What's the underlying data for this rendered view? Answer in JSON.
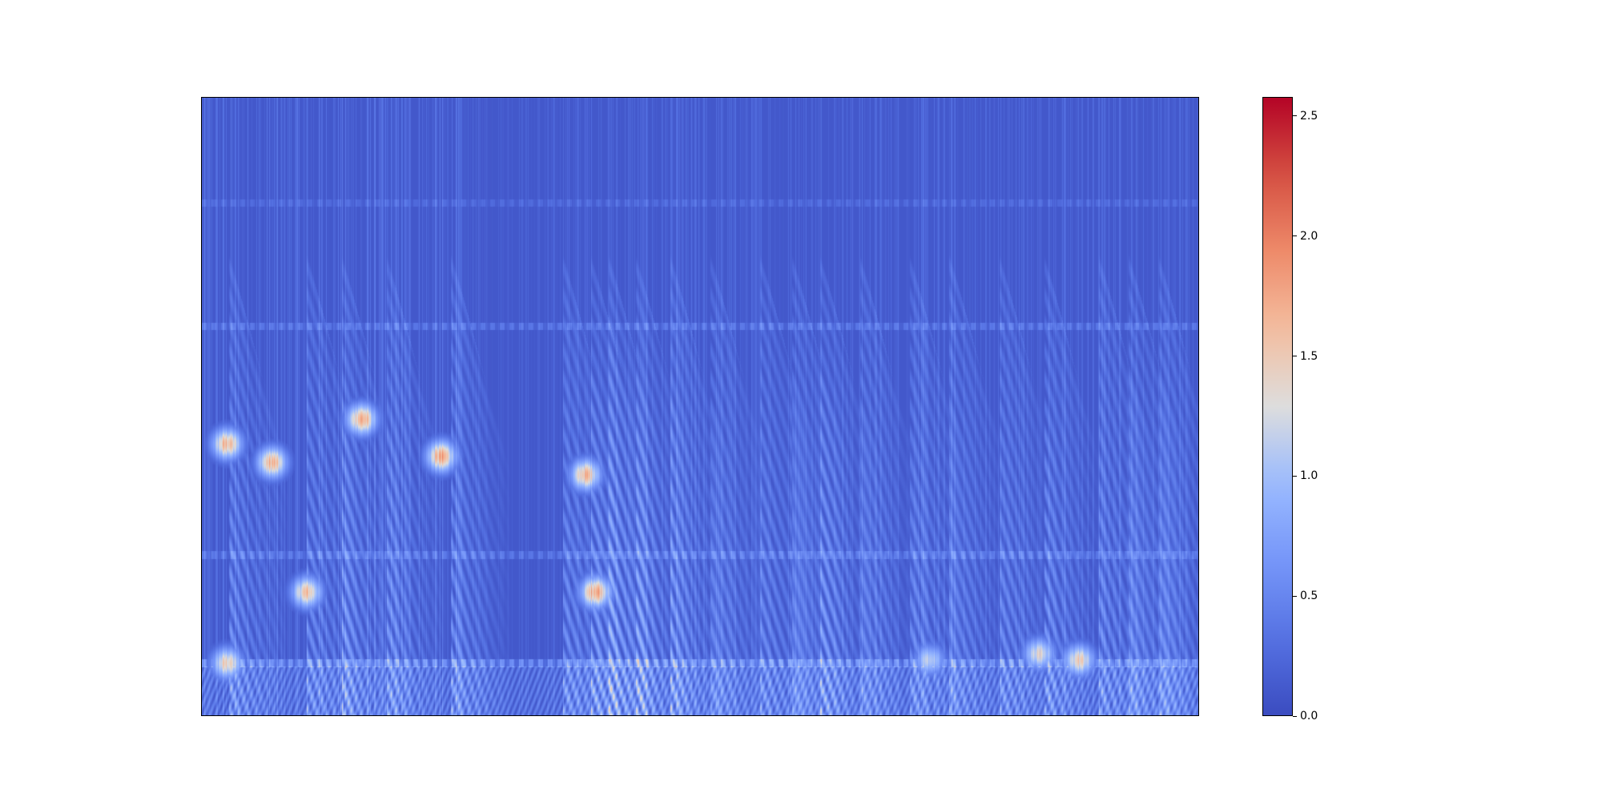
{
  "chart_data": {
    "type": "heatmap",
    "title": "",
    "xlabel": "",
    "ylabel": "",
    "x_ticks": [],
    "y_ticks": [],
    "colormap": "coolwarm",
    "colorbar": {
      "min": 0.0,
      "max": 2.58,
      "ticks": [
        0.0,
        0.5,
        1.0,
        1.5,
        2.0,
        2.5
      ],
      "tick_labels": [
        "0.0",
        "0.5",
        "1.0",
        "1.5",
        "2.0",
        "2.5"
      ]
    },
    "colors": {
      "low": "#3b4cc0",
      "mid": "#dddddd",
      "high": "#b40426"
    },
    "features": {
      "time_range": [
        0,
        1
      ],
      "freq_range": [
        0,
        1
      ],
      "background_value": 0.1,
      "onset_times": [
        0.027,
        0.105,
        0.14,
        0.185,
        0.25,
        0.362,
        0.39,
        0.408,
        0.435,
        0.47,
        0.51,
        0.56,
        0.592,
        0.62,
        0.66,
        0.71,
        0.75,
        0.8,
        0.845,
        0.9,
        0.93,
        0.96
      ],
      "horizontal_bands": [
        {
          "freq": 0.085,
          "strength": 0.45
        },
        {
          "freq": 0.26,
          "strength": 0.25
        },
        {
          "freq": 0.63,
          "strength": 0.25
        },
        {
          "freq": 0.83,
          "strength": 0.15
        }
      ],
      "hotspots": [
        {
          "t": 0.025,
          "f": 0.085,
          "value": 1.7
        },
        {
          "t": 0.025,
          "f": 0.44,
          "value": 1.9
        },
        {
          "t": 0.07,
          "f": 0.41,
          "value": 1.9
        },
        {
          "t": 0.105,
          "f": 0.2,
          "value": 1.8
        },
        {
          "t": 0.16,
          "f": 0.48,
          "value": 2.0
        },
        {
          "t": 0.24,
          "f": 0.42,
          "value": 2.0
        },
        {
          "t": 0.385,
          "f": 0.39,
          "value": 1.9
        },
        {
          "t": 0.395,
          "f": 0.2,
          "value": 2.1
        },
        {
          "t": 0.73,
          "f": 0.09,
          "value": 1.3
        },
        {
          "t": 0.84,
          "f": 0.1,
          "value": 1.6
        },
        {
          "t": 0.88,
          "f": 0.09,
          "value": 1.7
        }
      ]
    }
  }
}
